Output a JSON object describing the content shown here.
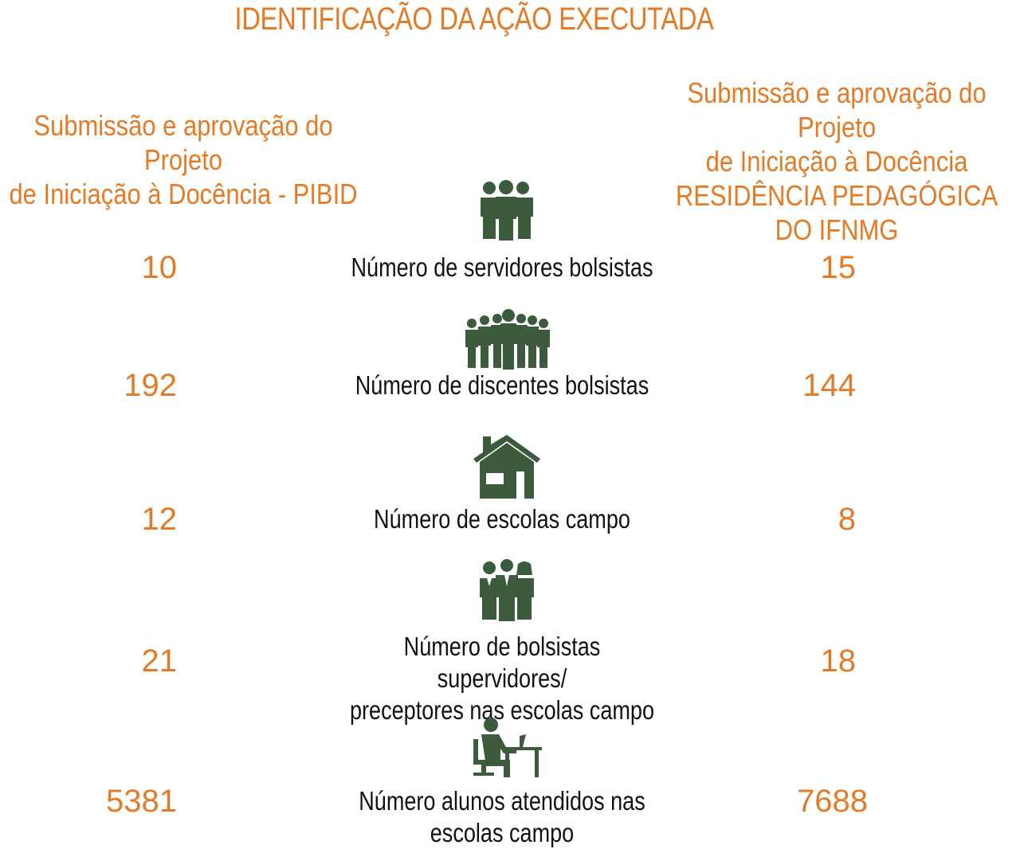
{
  "title": "IDENTIFICAÇÃO DA AÇÃO EXECUTADA",
  "columns": {
    "left_header": [
      "Submissão e aprovação do Projeto",
      "de Iniciação à Docência - PIBID"
    ],
    "right_header": [
      "Submissão e aprovação do Projeto",
      "de Iniciação à Docência",
      "RESIDÊNCIA PEDAGÓGICA DO IFNMG"
    ]
  },
  "rows": [
    {
      "icon": "group-icon",
      "label": "Número de servidores bolsistas",
      "left": "10",
      "right": "15"
    },
    {
      "icon": "crowd-icon",
      "label": "Número de discentes bolsistas",
      "left": "192",
      "right": "144"
    },
    {
      "icon": "house-icon",
      "label": "Número de escolas campo",
      "left": "12",
      "right": "8"
    },
    {
      "icon": "business-people-icon",
      "label": [
        "Número de bolsistas supervidores/",
        "preceptores nas escolas campo"
      ],
      "left": "21",
      "right": "18"
    },
    {
      "icon": "person-at-desk-icon",
      "label": "Número alunos atendidos nas escolas campo",
      "left": "5381",
      "right": "7688"
    }
  ],
  "colors": {
    "accent": "#e57a26",
    "icon": "#3b5b3c",
    "text": "#111111"
  }
}
